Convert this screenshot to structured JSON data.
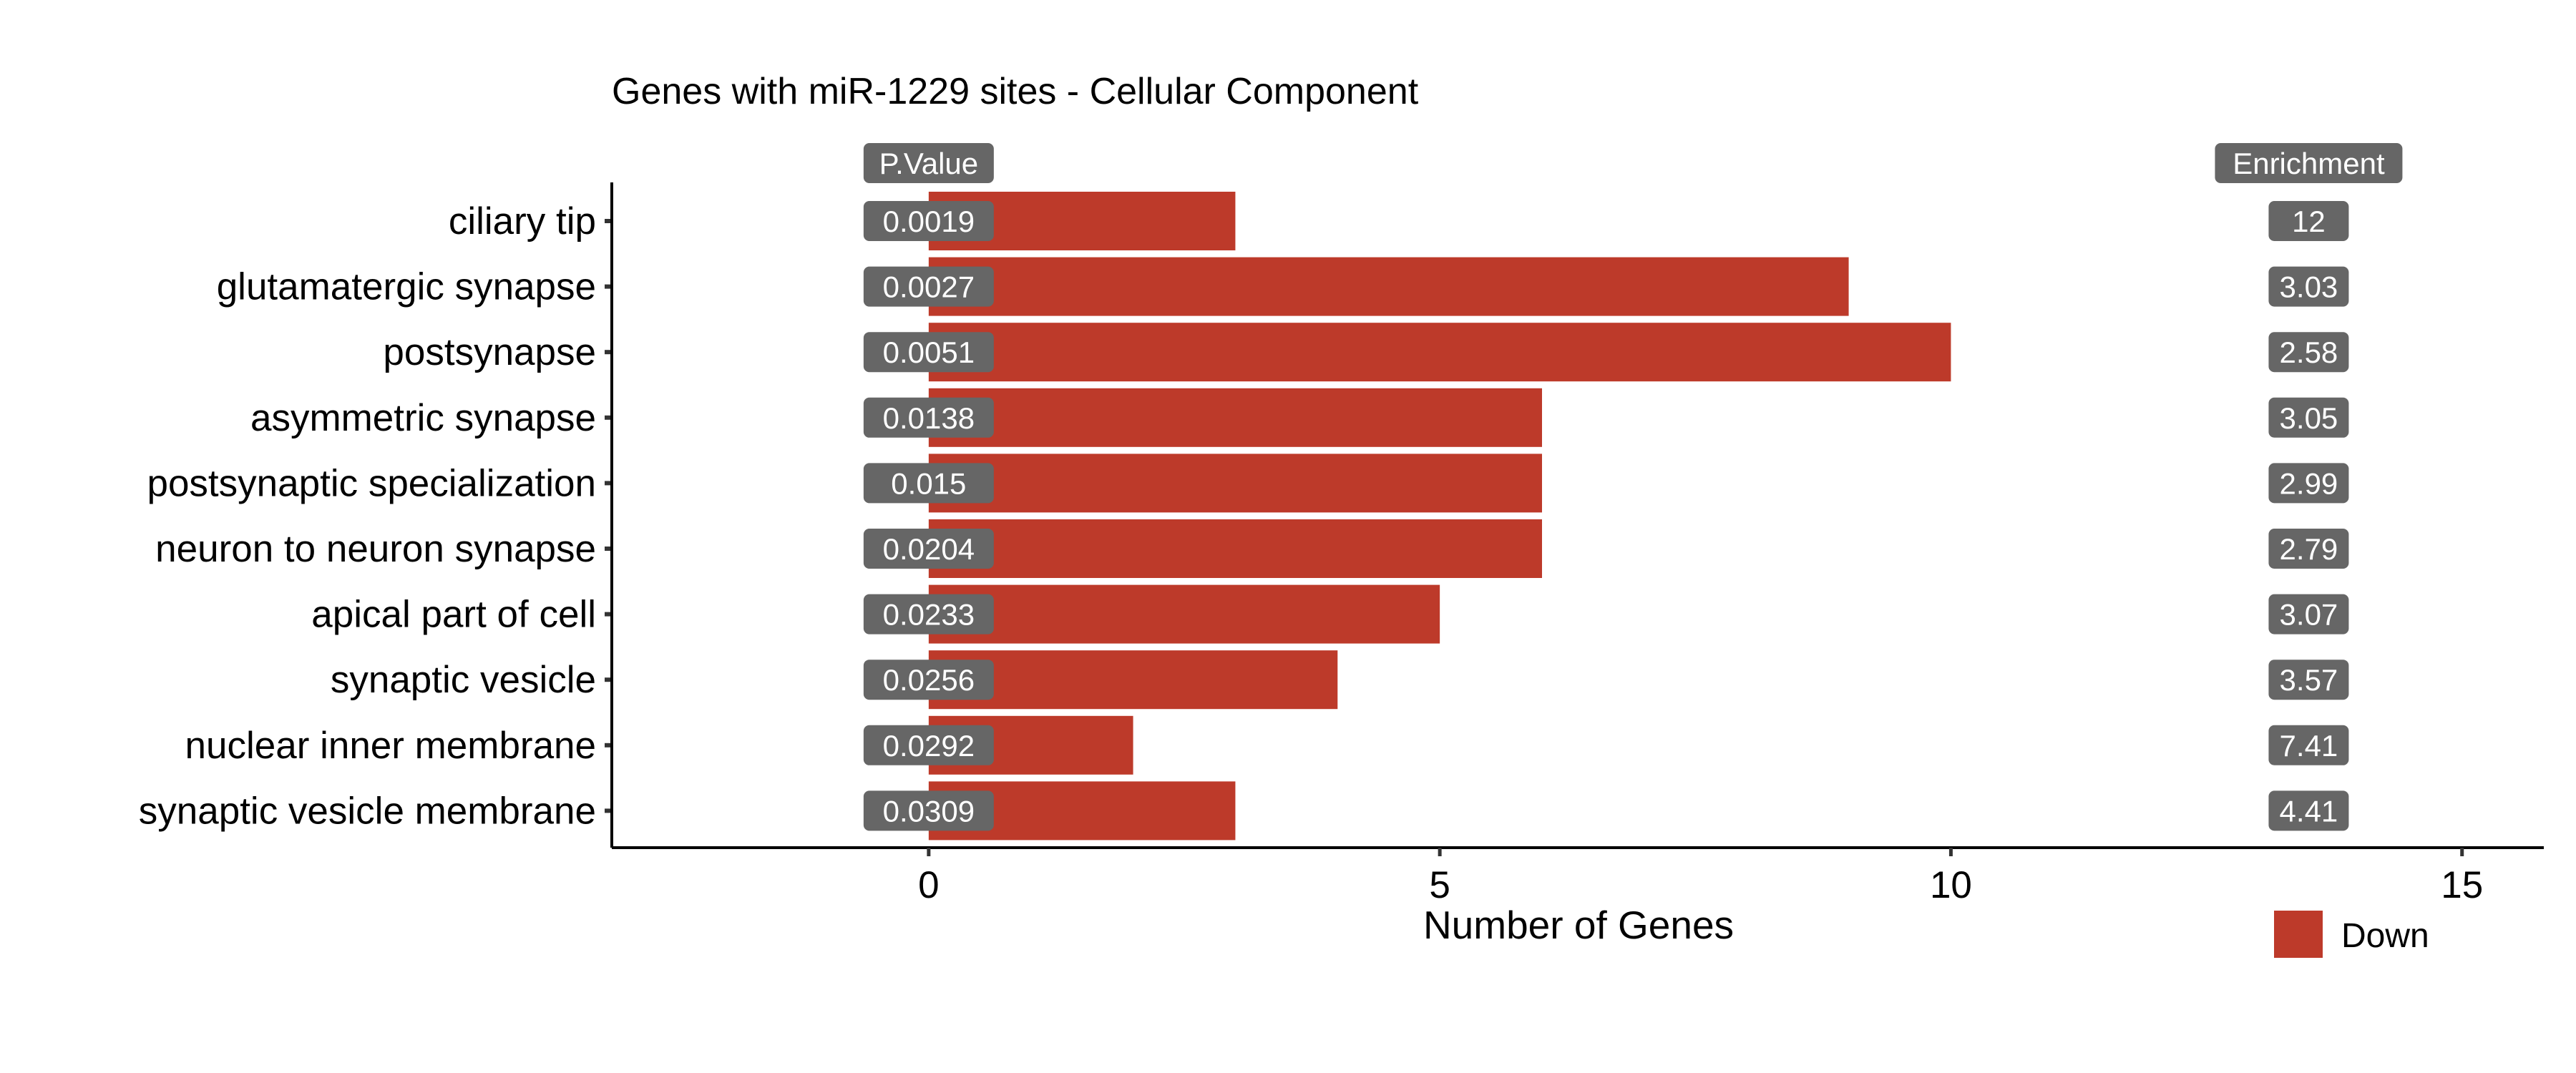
{
  "chart_data": {
    "type": "bar",
    "orientation": "horizontal",
    "title": "Genes with miR-1229 sites - Cellular Component",
    "xlabel": "Number of Genes",
    "ylabel": "",
    "xlim": [
      -3.1,
      15.8
    ],
    "xticks": [
      0,
      5,
      10,
      15
    ],
    "grid": false,
    "categories": [
      "ciliary tip",
      "glutamatergic synapse",
      "postsynapse",
      "asymmetric synapse",
      "postsynaptic specialization",
      "neuron to neuron synapse",
      "apical part of cell",
      "synaptic vesicle",
      "nuclear inner membrane",
      "synaptic vesicle membrane"
    ],
    "series": [
      {
        "name": "Down",
        "color": "#BD3A2A",
        "values": [
          3,
          9,
          10,
          6,
          6,
          6,
          5,
          4,
          2,
          3
        ]
      }
    ],
    "annotations": {
      "pvalue_header": "P.Value",
      "pvalue_x": 0,
      "pvalues": [
        "0.0019",
        "0.0027",
        "0.0051",
        "0.0138",
        "0.015",
        "0.0204",
        "0.0233",
        "0.0256",
        "0.0292",
        "0.0309"
      ],
      "enrichment_header": "Enrichment",
      "enrichment_x": 13.5,
      "enrichment": [
        "12",
        "3.03",
        "2.58",
        "3.05",
        "2.99",
        "2.79",
        "3.07",
        "3.57",
        "7.41",
        "4.41"
      ],
      "chip_color": "#666666"
    },
    "legend": {
      "placement": "bottom-right",
      "entries": [
        "Down"
      ]
    }
  }
}
